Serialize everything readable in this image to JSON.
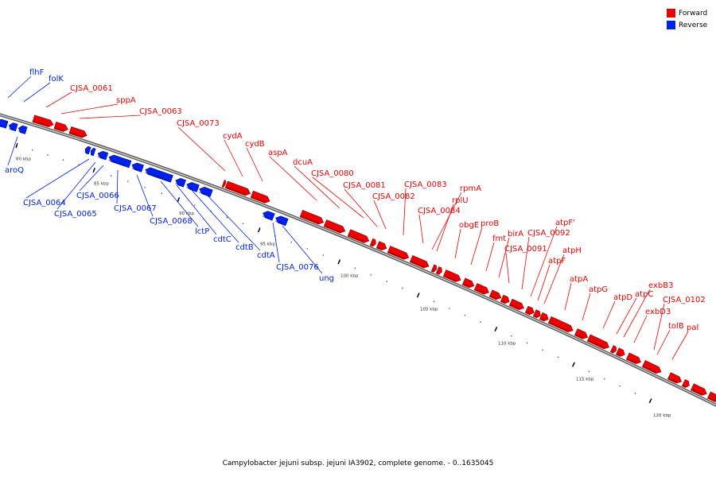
{
  "legend": {
    "forward_label": "Forward",
    "reverse_label": "Reverse",
    "forward_color": "#ee0000",
    "reverse_color": "#0022ee"
  },
  "caption": "Campylobacter jejuni subsp. jejuni IA3902, complete genome. - 0..1635045",
  "ticks": [
    {
      "label": "80 kbp",
      "kbp": 80
    },
    {
      "label": "85 kbp",
      "kbp": 85
    },
    {
      "label": "90 kbp",
      "kbp": 90
    },
    {
      "label": "95 kbp",
      "kbp": 95
    },
    {
      "label": "100 kbp",
      "kbp": 100
    },
    {
      "label": "105 kbp",
      "kbp": 105
    },
    {
      "label": "110 kbp",
      "kbp": 110
    },
    {
      "label": "115 kbp",
      "kbp": 115
    },
    {
      "label": "120 kbp",
      "kbp": 120
    }
  ],
  "genes": [
    {
      "name": "flhF",
      "strand": "reverse"
    },
    {
      "name": "folK",
      "strand": "reverse"
    },
    {
      "name": "CJSA_0061",
      "strand": "forward"
    },
    {
      "name": "sppA",
      "strand": "forward"
    },
    {
      "name": "CJSA_0063",
      "strand": "forward"
    },
    {
      "name": "CJSA_0073",
      "strand": "forward"
    },
    {
      "name": "cydA",
      "strand": "forward"
    },
    {
      "name": "cydB",
      "strand": "forward"
    },
    {
      "name": "aspA",
      "strand": "forward"
    },
    {
      "name": "dcuA",
      "strand": "forward"
    },
    {
      "name": "CJSA_0080",
      "strand": "forward"
    },
    {
      "name": "CJSA_0081",
      "strand": "forward"
    },
    {
      "name": "CJSA_0082",
      "strand": "forward"
    },
    {
      "name": "CJSA_0083",
      "strand": "forward"
    },
    {
      "name": "CJSA_0084",
      "strand": "forward"
    },
    {
      "name": "rpmA",
      "strand": "forward"
    },
    {
      "name": "rplU",
      "strand": "forward"
    },
    {
      "name": "obgE",
      "strand": "forward"
    },
    {
      "name": "proB",
      "strand": "forward"
    },
    {
      "name": "fmt",
      "strand": "forward"
    },
    {
      "name": "birA",
      "strand": "forward"
    },
    {
      "name": "CJSA_0091",
      "strand": "forward"
    },
    {
      "name": "CJSA_0092",
      "strand": "forward"
    },
    {
      "name": "atpF'",
      "strand": "forward"
    },
    {
      "name": "atpF",
      "strand": "forward"
    },
    {
      "name": "atpH",
      "strand": "forward"
    },
    {
      "name": "atpA",
      "strand": "forward"
    },
    {
      "name": "atpG",
      "strand": "forward"
    },
    {
      "name": "atpD",
      "strand": "forward"
    },
    {
      "name": "atpC",
      "strand": "forward"
    },
    {
      "name": "exbB3",
      "strand": "forward"
    },
    {
      "name": "exbD3",
      "strand": "forward"
    },
    {
      "name": "CJSA_0102",
      "strand": "forward"
    },
    {
      "name": "tolB",
      "strand": "forward"
    },
    {
      "name": "pal",
      "strand": "forward"
    },
    {
      "name": "aroQ",
      "strand": "reverse"
    },
    {
      "name": "CJSA_0064",
      "strand": "reverse"
    },
    {
      "name": "CJSA_0065",
      "strand": "reverse"
    },
    {
      "name": "CJSA_0066",
      "strand": "reverse"
    },
    {
      "name": "CJSA_0067",
      "strand": "reverse"
    },
    {
      "name": "CJSA_0068",
      "strand": "reverse"
    },
    {
      "name": "lctP",
      "strand": "reverse"
    },
    {
      "name": "cdtC",
      "strand": "reverse"
    },
    {
      "name": "cdtB",
      "strand": "reverse"
    },
    {
      "name": "cdtA",
      "strand": "reverse"
    },
    {
      "name": "CJSA_0076",
      "strand": "reverse"
    },
    {
      "name": "ung",
      "strand": "reverse"
    }
  ]
}
